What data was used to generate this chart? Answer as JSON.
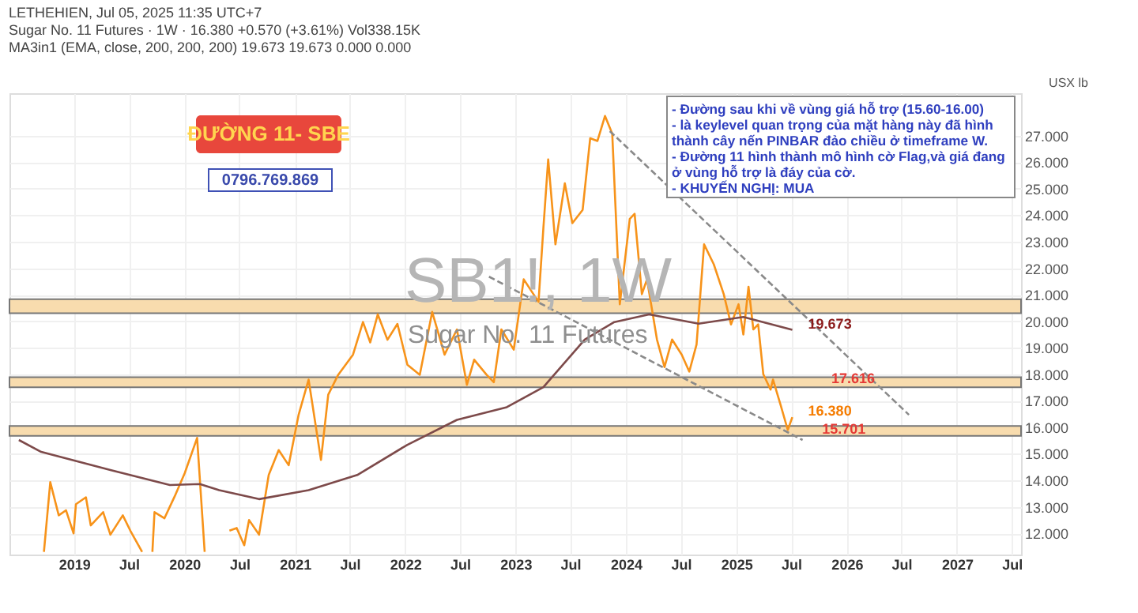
{
  "chart_data": {
    "type": "line",
    "annotations": [
      "LETHEHIEN, Jul 05, 2025 11:35 UTC+7",
      "Sugar No. 11 Futures · 1W · 16.380 +0.570 (+3.61%) Vol338.15K",
      "MA3in1 (EMA, close, 200, 200, 200) 19.673 19.673 0.000 0.000",
      "ĐƯỜNG 11- SBE",
      "0796.769.869",
      "- Đường sau khi về vùng giá hỗ trợ (15.60-16.00) - là keylevel quan trọng của mặt hàng này đã hình thành cây nến PINBAR đảo chiều ở timeframe W.",
      "- Đường 11 hình thành mô hình cờ Flag,và giá đang ở vùng hỗ trợ là đáy của cờ.",
      "- KHUYẾN NGHỊ: MUA",
      "SB1!, 1W",
      "Sugar No. 11 Futures",
      {
        "text": "17.616",
        "x": "2025-09-20",
        "y": 17.616
      },
      {
        "text": "15.701",
        "x": "2025-08-20",
        "y": 15.701
      },
      {
        "text": "19.673",
        "x": "2025-07-05",
        "y": 19.673
      },
      {
        "text": "16.380",
        "x": "2025-07-05",
        "y": 16.38
      }
    ],
    "ylabel": "USX lb",
    "xlim": [
      "2018-06-01",
      "2027-08-01"
    ],
    "ylim": [
      11.2,
      28.6
    ],
    "yticks": [
      {
        "value": 12,
        "label": "12.000"
      },
      {
        "value": 13,
        "label": "13.000"
      },
      {
        "value": 14,
        "label": "14.000"
      },
      {
        "value": 15,
        "label": "15.000"
      },
      {
        "value": 16,
        "label": "16.000"
      },
      {
        "value": 17,
        "label": "17.000"
      },
      {
        "value": 18,
        "label": "18.000"
      },
      {
        "value": 19,
        "label": "19.000"
      },
      {
        "value": 20,
        "label": "20.000"
      },
      {
        "value": 21,
        "label": "21.000"
      },
      {
        "value": 22,
        "label": "22.000"
      },
      {
        "value": 23,
        "label": "23.000"
      },
      {
        "value": 24,
        "label": "24.000"
      },
      {
        "value": 25,
        "label": "25.000"
      },
      {
        "value": 26,
        "label": "26.000"
      },
      {
        "value": 27,
        "label": "27.000"
      }
    ],
    "xticks": [
      {
        "value": "2019-01-01",
        "label": "2019"
      },
      {
        "value": "2019-07-01",
        "label": "Jul"
      },
      {
        "value": "2020-01-01",
        "label": "2020"
      },
      {
        "value": "2020-07-01",
        "label": "Jul"
      },
      {
        "value": "2021-01-01",
        "label": "2021"
      },
      {
        "value": "2021-07-01",
        "label": "Jul"
      },
      {
        "value": "2022-01-01",
        "label": "2022"
      },
      {
        "value": "2022-07-01",
        "label": "Jul"
      },
      {
        "value": "2023-01-01",
        "label": "2023"
      },
      {
        "value": "2023-07-01",
        "label": "Jul"
      },
      {
        "value": "2024-01-01",
        "label": "2024"
      },
      {
        "value": "2024-07-01",
        "label": "Jul"
      },
      {
        "value": "2025-01-01",
        "label": "2025"
      },
      {
        "value": "2025-07-01",
        "label": "Jul"
      },
      {
        "value": "2026-01-01",
        "label": "2026"
      },
      {
        "value": "2026-07-01",
        "label": "Jul"
      },
      {
        "value": "2027-01-01",
        "label": "2027"
      },
      {
        "value": "2027-07-01",
        "label": "Jul"
      }
    ],
    "grid": true,
    "bands": [
      {
        "axis": "y",
        "from": 20.3,
        "to": 20.83,
        "color": "#f8dcae"
      },
      {
        "axis": "y",
        "from": 17.51,
        "to": 17.89,
        "color": "#f8dcae"
      },
      {
        "axis": "y",
        "from": 15.68,
        "to": 16.05,
        "color": "#f8dcae"
      }
    ],
    "series": [
      {
        "color": "#f7931a",
        "x": [
          "2018-09-23",
          "2018-10-14",
          "2018-11-11",
          "2018-12-05",
          "2018-12-30",
          "2019-01-07",
          "2019-02-09",
          "2019-02-25",
          "2019-04-07",
          "2019-05-01",
          "2019-06-11",
          "2019-07-06",
          "2019-08-14",
          "2019-08-28",
          "2019-09-17",
          "2019-09-24",
          "2019-10-27",
          "2019-11-30",
          "2020-01-02",
          "2020-02-12",
          "2020-03-08",
          "2020-04-15",
          "2020-05-29",
          "2020-06-22",
          "2020-07-17",
          "2020-08-02",
          "2020-09-04",
          "2020-10-06",
          "2020-11-08",
          "2020-12-11",
          "2021-01-13",
          "2021-02-15",
          "2021-03-28",
          "2021-04-21",
          "2021-05-24",
          "2021-07-12",
          "2021-08-14",
          "2021-09-07",
          "2021-10-02",
          "2021-11-03",
          "2021-12-06",
          "2022-01-08",
          "2022-02-18",
          "2022-03-31",
          "2022-05-11",
          "2022-06-21",
          "2022-07-24",
          "2022-08-17",
          "2022-09-27",
          "2022-10-21",
          "2022-11-15",
          "2022-12-26",
          "2023-01-28",
          "2023-03-18",
          "2023-04-03",
          "2023-04-19",
          "2023-05-13",
          "2023-06-13",
          "2023-07-08",
          "2023-08-11",
          "2023-09-05",
          "2023-09-29",
          "2023-10-24",
          "2023-11-17",
          "2023-12-12",
          "2024-01-14",
          "2024-01-30",
          "2024-02-23",
          "2024-03-11",
          "2024-04-13",
          "2024-05-08",
          "2024-06-02",
          "2024-07-04",
          "2024-07-29",
          "2024-08-22",
          "2024-09-16",
          "2024-10-18",
          "2024-11-20",
          "2024-12-14",
          "2025-01-08",
          "2025-01-24",
          "2025-02-10",
          "2025-02-26",
          "2025-03-14",
          "2025-03-31",
          "2025-04-24",
          "2025-05-02",
          "2025-05-27",
          "2025-06-20",
          "2025-07-05"
        ],
        "values": [
          11.3,
          13.93,
          12.68,
          12.87,
          12.0,
          13.1,
          13.36,
          12.3,
          12.8,
          11.95,
          12.68,
          12.1,
          11.3,
          null,
          11.3,
          12.8,
          12.57,
          13.4,
          14.27,
          15.6,
          11.3,
          null,
          12.1,
          12.2,
          11.55,
          12.5,
          11.95,
          14.2,
          15.14,
          14.57,
          16.47,
          17.8,
          14.77,
          17.23,
          17.98,
          18.74,
          19.97,
          19.2,
          20.26,
          19.3,
          19.9,
          18.36,
          17.98,
          20.35,
          18.74,
          19.69,
          17.6,
          18.55,
          17.98,
          17.7,
          19.69,
          18.93,
          21.58,
          20.73,
          23.5,
          26.1,
          22.9,
          25.2,
          23.7,
          24.2,
          26.9,
          26.8,
          27.74,
          27.07,
          20.64,
          23.86,
          24.05,
          21.02,
          21.58,
          19.31,
          18.27,
          19.31,
          18.74,
          18.1,
          19.12,
          22.9,
          22.15,
          21.02,
          19.88,
          20.64,
          19.5,
          21.3,
          19.69,
          19.88,
          18.0,
          17.42,
          17.8,
          16.85,
          15.9,
          16.38
        ]
      },
      {
        "color": "#7d4a4a",
        "x": [
          "2018-07-02",
          "2018-09-14",
          "2019-05-01",
          "2019-11-14",
          "2020-02-21",
          "2020-04-25",
          "2020-09-04",
          "2021-02-15",
          "2021-07-26",
          "2022-01-08",
          "2022-06-21",
          "2022-12-03",
          "2023-04-03",
          "2023-08-18",
          "2023-11-24",
          "2024-03-18",
          "2024-08-29",
          "2025-01-24",
          "2025-07-05"
        ],
        "values": [
          15.52,
          15.07,
          14.39,
          13.82,
          13.86,
          13.63,
          13.29,
          13.63,
          14.2,
          15.34,
          16.28,
          16.76,
          17.51,
          19.31,
          19.97,
          20.26,
          19.91,
          20.16,
          19.673
        ]
      },
      {
        "type": "line",
        "color": "#8a8a8a",
        "line_style": "dashed",
        "x": [
          "2023-11-09",
          "2026-07-26"
        ],
        "values": [
          27.17,
          16.47
        ]
      },
      {
        "type": "line",
        "color": "#8a8a8a",
        "line_style": "dashed",
        "x": [
          "2022-10-05",
          "2025-08-08"
        ],
        "values": [
          21.68,
          15.52
        ]
      }
    ]
  }
}
